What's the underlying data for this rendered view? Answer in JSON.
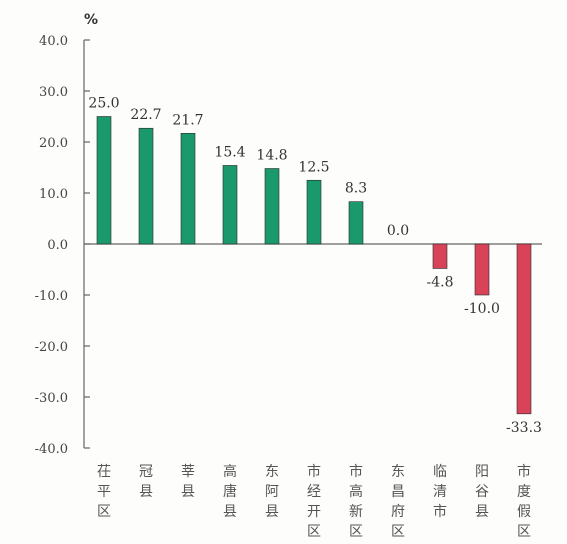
{
  "chart_data": {
    "type": "bar",
    "unit": "%",
    "categories": [
      "茌平区",
      "冠县",
      "莘县",
      "高唐县",
      "东阿县",
      "市经开区",
      "市高新区",
      "东昌府区",
      "临清市",
      "阳谷县",
      "市度假区"
    ],
    "values": [
      25.0,
      22.7,
      21.7,
      15.4,
      14.8,
      12.5,
      8.3,
      0.0,
      -4.8,
      -10.0,
      -33.3
    ],
    "value_labels": [
      "25.0",
      "22.7",
      "21.7",
      "15.4",
      "14.8",
      "12.5",
      "8.3",
      "0.0",
      "-4.8",
      "-10.0",
      "-33.3"
    ],
    "ylim": [
      -40,
      40
    ],
    "yticks": [
      -40,
      -30,
      -20,
      -10,
      0,
      10,
      20,
      30,
      40
    ],
    "ytick_labels": [
      "-40.0",
      "-30.0",
      "-20.0",
      "-10.0",
      "0.0",
      "10.0",
      "20.0",
      "30.0",
      "40.0"
    ],
    "colors": {
      "positive": "#1a9a6c",
      "negative": "#d9435a",
      "axis": "#666666"
    },
    "grid": false,
    "legend": "none"
  }
}
